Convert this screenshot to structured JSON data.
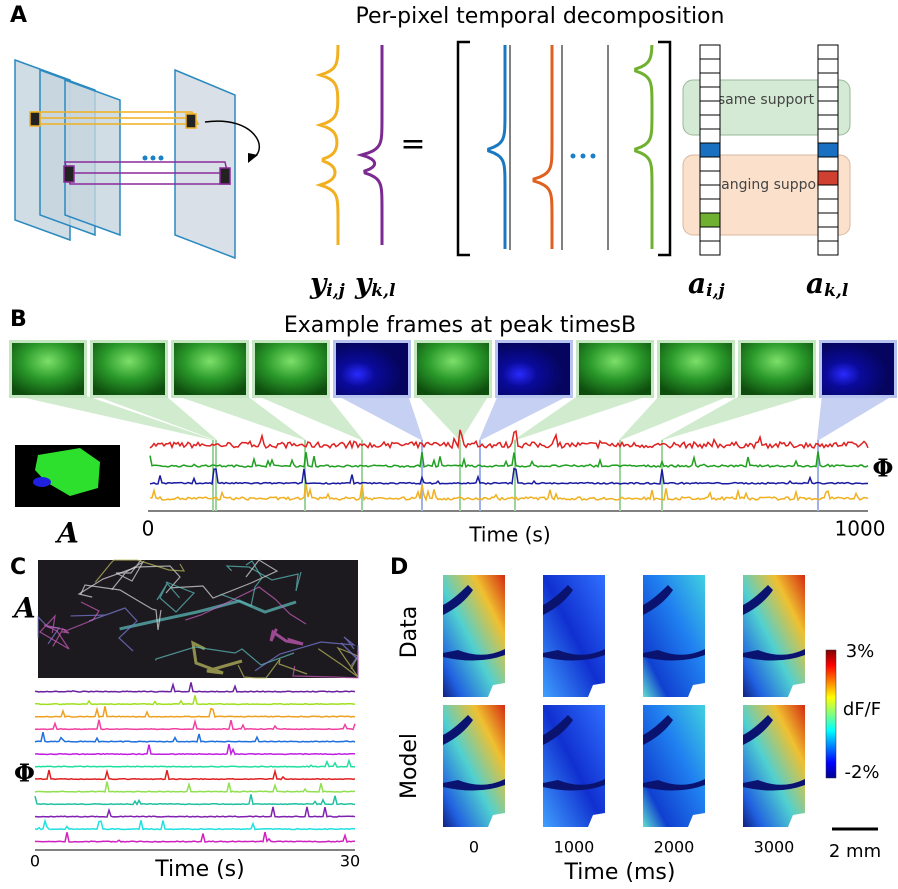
{
  "panel_a": {
    "label": "A",
    "title": "Per-pixel temporal decomposition",
    "equals": "=",
    "same_support": "same support",
    "changing_support": "changing support",
    "symbols": [
      {
        "symbol": "y",
        "subscript": "i,j"
      },
      {
        "symbol": "y",
        "subscript": "k,l"
      },
      {
        "symbol": "a",
        "subscript": "i,j"
      },
      {
        "symbol": "a",
        "subscript": "k,l"
      }
    ]
  },
  "panel_b": {
    "label": "B",
    "title": "Example frames at peak timesB",
    "spatial_label": "A",
    "temporal_label": "Φ",
    "x_axis": {
      "label": "Time (s)",
      "start": "0",
      "end": "1000"
    }
  },
  "panel_c": {
    "label": "C",
    "spatial_label": "A",
    "temporal_label": "Φ",
    "x_axis": {
      "label": "Time (s)",
      "start": "0",
      "end": "30"
    }
  },
  "panel_d": {
    "label": "D",
    "row_labels": [
      "Data",
      "Model"
    ],
    "x_ticks": [
      "0",
      "1000",
      "2000",
      "3000"
    ],
    "x_label": "Time (ms)",
    "colorbar": {
      "max": "3%",
      "label": "dF/F",
      "min": "-2%"
    },
    "scale_bar": "2 mm"
  }
}
